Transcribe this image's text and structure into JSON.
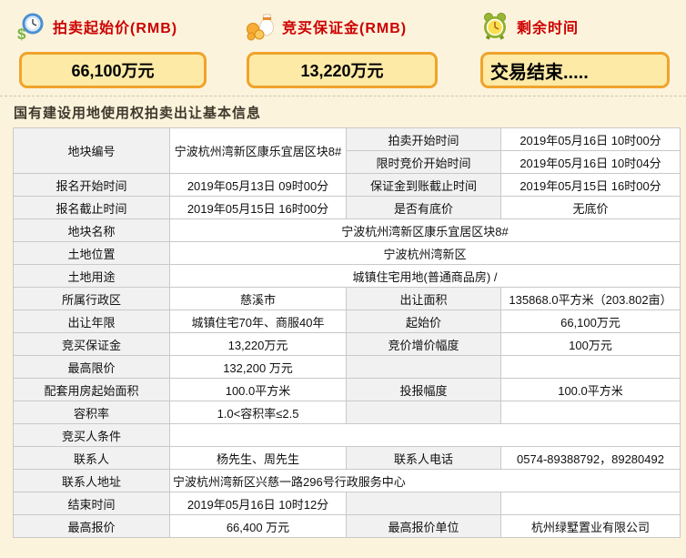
{
  "header": {
    "label_color": "#cc0000",
    "box_bg": "#fdeaa6",
    "box_border": "#f0a32a",
    "items": [
      {
        "icon": "money-clock-icon",
        "label": "拍卖起始价(RMB)",
        "value": "66,100万元"
      },
      {
        "icon": "money-bag-icon",
        "label": "竞买保证金(RMB)",
        "value": "13,220万元"
      },
      {
        "icon": "alarm-clock-icon",
        "label": "剩余时间",
        "value": "交易结束....."
      }
    ]
  },
  "section": {
    "title": "国有建设用地使用权拍卖出让基本信息"
  },
  "table": {
    "rows": [
      {
        "cells": [
          {
            "text": "地块编号",
            "kind": "label",
            "rowspan": 2
          },
          {
            "text": "宁波杭州湾新区康乐宜居区块8#",
            "kind": "value",
            "rowspan": 2
          },
          {
            "text": "拍卖开始时间",
            "kind": "label"
          },
          {
            "text": "2019年05月16日 10时00分",
            "kind": "value"
          }
        ]
      },
      {
        "cells": [
          {
            "text": "限时竞价开始时间",
            "kind": "label"
          },
          {
            "text": "2019年05月16日 10时04分",
            "kind": "value"
          }
        ]
      },
      {
        "cells": [
          {
            "text": "报名开始时间",
            "kind": "label"
          },
          {
            "text": "2019年05月13日 09时00分",
            "kind": "value"
          },
          {
            "text": "保证金到账截止时间",
            "kind": "label"
          },
          {
            "text": "2019年05月15日 16时00分",
            "kind": "value"
          }
        ]
      },
      {
        "cells": [
          {
            "text": "报名截止时间",
            "kind": "label"
          },
          {
            "text": "2019年05月15日 16时00分",
            "kind": "value"
          },
          {
            "text": "是否有底价",
            "kind": "label"
          },
          {
            "text": "无底价",
            "kind": "value"
          }
        ]
      },
      {
        "cells": [
          {
            "text": "地块名称",
            "kind": "label"
          },
          {
            "text": "宁波杭州湾新区康乐宜居区块8#",
            "kind": "value",
            "colspan": 3
          }
        ]
      },
      {
        "cells": [
          {
            "text": "土地位置",
            "kind": "label"
          },
          {
            "text": "宁波杭州湾新区",
            "kind": "value",
            "colspan": 3
          }
        ]
      },
      {
        "cells": [
          {
            "text": "土地用途",
            "kind": "label"
          },
          {
            "text": "城镇住宅用地(普通商品房) /",
            "kind": "value",
            "colspan": 3
          }
        ]
      },
      {
        "cells": [
          {
            "text": "所属行政区",
            "kind": "label"
          },
          {
            "text": "慈溪市",
            "kind": "value"
          },
          {
            "text": "出让面积",
            "kind": "label"
          },
          {
            "text": "135868.0平方米（203.802亩）",
            "kind": "value"
          }
        ]
      },
      {
        "cells": [
          {
            "text": "出让年限",
            "kind": "label"
          },
          {
            "text": "城镇住宅70年、商服40年",
            "kind": "value"
          },
          {
            "text": "起始价",
            "kind": "label"
          },
          {
            "text": "66,100万元",
            "kind": "value"
          }
        ]
      },
      {
        "cells": [
          {
            "text": "竞买保证金",
            "kind": "label"
          },
          {
            "text": "13,220万元",
            "kind": "value"
          },
          {
            "text": "竞价增价幅度",
            "kind": "label"
          },
          {
            "text": "100万元",
            "kind": "value"
          }
        ]
      },
      {
        "cells": [
          {
            "text": "最高限价",
            "kind": "label"
          },
          {
            "text": "132,200 万元",
            "kind": "value"
          },
          {
            "text": "",
            "kind": "label"
          },
          {
            "text": "",
            "kind": "value"
          }
        ]
      },
      {
        "cells": [
          {
            "text": "配套用房起始面积",
            "kind": "label"
          },
          {
            "text": "100.0平方米",
            "kind": "value"
          },
          {
            "text": "投报幅度",
            "kind": "label"
          },
          {
            "text": "100.0平方米",
            "kind": "value"
          }
        ]
      },
      {
        "cells": [
          {
            "text": "容积率",
            "kind": "label"
          },
          {
            "text": "1.0<容积率≤2.5",
            "kind": "value"
          },
          {
            "text": "",
            "kind": "label"
          },
          {
            "text": "",
            "kind": "value"
          }
        ]
      },
      {
        "cells": [
          {
            "text": "竞买人条件",
            "kind": "label"
          },
          {
            "text": "",
            "kind": "value",
            "colspan": 3
          }
        ]
      },
      {
        "cells": [
          {
            "text": "联系人",
            "kind": "label"
          },
          {
            "text": "杨先生、周先生",
            "kind": "value"
          },
          {
            "text": "联系人电话",
            "kind": "label"
          },
          {
            "text": "0574-89388792，89280492",
            "kind": "value"
          }
        ]
      },
      {
        "cells": [
          {
            "text": "联系人地址",
            "kind": "label"
          },
          {
            "text": "宁波杭州湾新区兴慈一路296号行政服务中心",
            "kind": "value",
            "colspan": 3,
            "align": "left"
          }
        ]
      },
      {
        "cells": [
          {
            "text": "结束时间",
            "kind": "label"
          },
          {
            "text": "2019年05月16日 10时12分",
            "kind": "value"
          },
          {
            "text": "",
            "kind": "label"
          },
          {
            "text": "",
            "kind": "value"
          }
        ]
      },
      {
        "cells": [
          {
            "text": "最高报价",
            "kind": "label"
          },
          {
            "text": "66,400 万元",
            "kind": "value"
          },
          {
            "text": "最高报价单位",
            "kind": "label"
          },
          {
            "text": "杭州绿墅置业有限公司",
            "kind": "value"
          }
        ]
      }
    ]
  }
}
